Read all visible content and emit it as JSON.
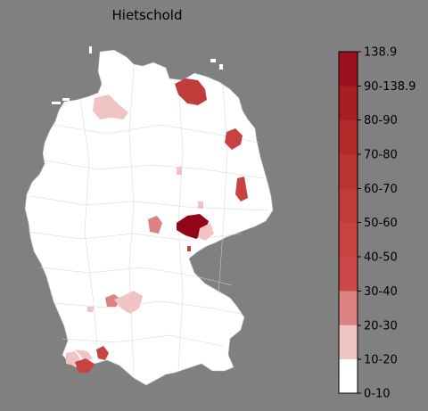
{
  "title": "Hietschold",
  "legend": {
    "labels": [
      "138.9",
      "90-138.9",
      "80-90",
      "70-80",
      "60-70",
      "50-60",
      "40-50",
      "30-40",
      "20-30",
      "10-20",
      "0-10"
    ],
    "colors": [
      "#ffffff",
      "#f0c4c4",
      "#dd8282",
      "#cc4848",
      "#c84242",
      "#c23b3b",
      "#bb3434",
      "#b32a2a",
      "#a81d22",
      "#9c1020",
      "#920518"
    ]
  },
  "map": {
    "land_color": "#ffffff",
    "border_color": "#c8c8c8"
  }
}
